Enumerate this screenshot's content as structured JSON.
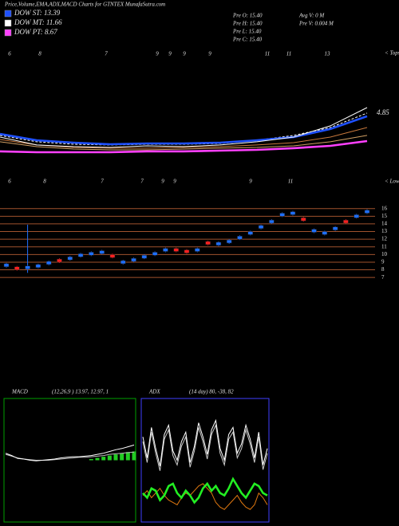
{
  "header": {
    "title": "Price,Volume,EMA,ADX,MACD Charts for GTNTEX MunafaSutra.com",
    "legend": [
      {
        "label": "DOW ST: 13.39",
        "color": "#1e50ff"
      },
      {
        "label": "DOW MT: 11.66",
        "color": "#ffffff"
      },
      {
        "label": "DOW PT: 8.67",
        "color": "#ff40ff"
      }
    ],
    "info": [
      "Pre  O: 15.40",
      "Pre  H: 15.40",
      "Pre  L: 15.40",
      "Pre  C: 15.40"
    ],
    "volume_info": [
      "Avg V: 0  M",
      "Pre  V: 0.004  M"
    ],
    "top_marker": "< Tops",
    "low_marker": "< Lows",
    "top_labels": [
      "6",
      "8",
      "7",
      "9",
      "9",
      "9",
      "9",
      "11",
      "11",
      "13"
    ],
    "low_labels": [
      "6",
      "8",
      "7",
      "7",
      "9",
      "9",
      "9",
      "11"
    ]
  },
  "chart_data": [
    {
      "type": "line",
      "annotation": "4.85",
      "ylim": [
        3,
        8
      ],
      "series": [
        {
          "color": "#d2a064",
          "values": [
            4.38,
            4.0,
            3.81,
            3.75,
            3.75,
            3.81,
            3.88,
            3.94,
            4.06,
            4.38,
            4.88
          ]
        },
        {
          "color": "#c8783c",
          "values": [
            4.56,
            4.13,
            3.94,
            3.88,
            3.88,
            3.94,
            4.0,
            4.13,
            4.31,
            4.75,
            5.5
          ]
        },
        {
          "color": "#ffffff",
          "dashed": true,
          "values": [
            4.88,
            4.38,
            4.19,
            4.13,
            4.19,
            4.19,
            4.25,
            4.5,
            4.88,
            5.5,
            6.63
          ]
        },
        {
          "color": "#ff40ff",
          "thick": true,
          "values": [
            3.63,
            3.56,
            3.56,
            3.56,
            3.63,
            3.63,
            3.69,
            3.75,
            3.88,
            4.06,
            4.44
          ]
        },
        {
          "color": "#1e50ff",
          "thick": true,
          "values": [
            5.0,
            4.5,
            4.31,
            4.19,
            4.25,
            4.25,
            4.31,
            4.5,
            4.75,
            5.38,
            6.38
          ]
        },
        {
          "color": "#ffffff",
          "values": [
            4.75,
            4.13,
            4.0,
            3.94,
            4.06,
            4.0,
            4.13,
            4.38,
            4.75,
            5.63,
            7.06
          ]
        }
      ]
    },
    {
      "type": "candlestick",
      "ylim": [
        6.6,
        16.7
      ],
      "yticks": [
        16,
        15,
        14,
        13,
        12,
        11,
        10,
        9,
        8,
        7
      ],
      "grid_color": "#a0522d",
      "up_color": "#1e6fff",
      "down_color": "#ff2020",
      "open": [
        8.4,
        8.4,
        8.1,
        8.3,
        8.7,
        9.4,
        9.3,
        9.7,
        9.9,
        10.1,
        10.0,
        8.8,
        9.1,
        9.5,
        9.9,
        10.4,
        10.8,
        10.6,
        10.4,
        11.7,
        11.2,
        11.5,
        12.0,
        12.6,
        13.4,
        14.1,
        15.0,
        15.2,
        14.8,
        12.9,
        12.6,
        13.2,
        14.5,
        14.8,
        15.4
      ],
      "close": [
        8.8,
        8.0,
        8.5,
        8.7,
        9.1,
        9.0,
        9.7,
        10.1,
        10.3,
        10.5,
        9.6,
        9.2,
        9.5,
        9.9,
        10.3,
        10.8,
        10.4,
        10.2,
        10.8,
        11.3,
        11.6,
        11.9,
        12.4,
        13.0,
        13.8,
        14.5,
        15.4,
        15.6,
        14.4,
        13.3,
        13.0,
        13.6,
        14.1,
        15.2,
        15.8
      ],
      "high": [
        8.9,
        8.5,
        13.9,
        8.8,
        9.2,
        9.5,
        9.8,
        10.2,
        10.4,
        10.6,
        10.1,
        9.3,
        9.6,
        10.0,
        10.4,
        10.9,
        10.9,
        10.7,
        10.9,
        11.8,
        11.7,
        12.0,
        12.5,
        13.1,
        13.9,
        14.6,
        15.5,
        15.7,
        14.9,
        13.4,
        13.1,
        13.7,
        14.6,
        15.3,
        15.9
      ],
      "low": [
        8.3,
        7.9,
        7.6,
        8.2,
        8.6,
        8.9,
        9.2,
        9.6,
        9.8,
        10.0,
        9.5,
        8.7,
        9.0,
        9.4,
        9.8,
        10.3,
        10.3,
        10.1,
        10.3,
        11.2,
        11.1,
        11.4,
        11.9,
        12.5,
        13.3,
        14.0,
        14.9,
        15.1,
        14.3,
        12.8,
        12.5,
        13.1,
        14.0,
        14.7,
        15.3
      ]
    },
    {
      "type": "line",
      "title": "MACD",
      "subtitle": "(12,26,9 ) 13.97, 12.97, 1",
      "border": "#00a000",
      "ylim": [
        -10,
        10
      ],
      "series": [
        {
          "color": "#22cc22",
          "style": "bar",
          "values": [
            0,
            0,
            0,
            0,
            0,
            0,
            0,
            0,
            0,
            0,
            0,
            0,
            0,
            0,
            0.2,
            0.4,
            0.6,
            0.8,
            1.0,
            1.2,
            1.4,
            1.5
          ]
        },
        {
          "color": "#bbbbbb",
          "values": [
            1.0,
            0.7,
            0.4,
            0.2,
            0.1,
            0.0,
            0.0,
            0.0,
            0.1,
            0.2,
            0.3,
            0.4,
            0.5,
            0.5,
            0.6,
            0.7,
            0.8,
            1.0,
            1.1,
            1.2,
            1.3,
            1.4
          ]
        },
        {
          "color": "#ffffff",
          "values": [
            1.2,
            0.8,
            0.3,
            0.2,
            0.0,
            -0.1,
            0.0,
            0.1,
            0.2,
            0.4,
            0.5,
            0.6,
            0.6,
            0.7,
            0.8,
            1.0,
            1.2,
            1.5,
            1.8,
            2.0,
            2.3,
            2.6
          ]
        }
      ]
    },
    {
      "type": "line",
      "title": "ADX",
      "subtitle": "(14 day) 80, -38, 82",
      "border": "#4040ff",
      "ylim": [
        0,
        100
      ],
      "series": [
        {
          "color": "#cccccc",
          "values": [
            66,
            48,
            74,
            56,
            41,
            68,
            76,
            54,
            46,
            62,
            70,
            44,
            58,
            78,
            66,
            51,
            72,
            80,
            56,
            46,
            68,
            74,
            52,
            60,
            76,
            64,
            48,
            70,
            42,
            56
          ]
        },
        {
          "color": "#ffffff",
          "values": [
            70,
            52,
            78,
            60,
            45,
            72,
            80,
            58,
            50,
            66,
            74,
            48,
            62,
            82,
            70,
            55,
            76,
            84,
            60,
            50,
            72,
            78,
            56,
            64,
            80,
            68,
            52,
            74,
            46,
            60
          ]
        },
        {
          "color": "#e07810",
          "values": [
            20,
            24,
            18,
            22,
            26,
            20,
            16,
            14,
            12,
            18,
            22,
            20,
            24,
            28,
            30,
            26,
            22,
            14,
            10,
            8,
            12,
            16,
            20,
            14,
            10,
            8,
            12,
            22,
            18,
            12
          ]
        },
        {
          "color": "#22ee22",
          "thick": true,
          "values": [
            22,
            18,
            26,
            24,
            16,
            20,
            28,
            30,
            22,
            18,
            24,
            20,
            14,
            18,
            26,
            30,
            24,
            28,
            22,
            20,
            26,
            34,
            28,
            22,
            18,
            24,
            30,
            28,
            22,
            20
          ]
        }
      ]
    }
  ]
}
